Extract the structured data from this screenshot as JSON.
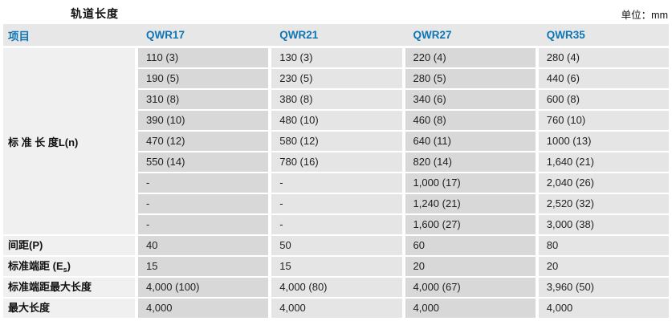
{
  "page": {
    "title": "轨道长度",
    "unit_label": "单位：mm"
  },
  "colors": {
    "accent_blue": "#0f76b4",
    "header_bg": "#e7e7e7",
    "label_bg": "#f0f0f0",
    "cell_dark": "#d8d8d8",
    "cell_light": "#e5e5e5"
  },
  "table": {
    "header": {
      "item": "项目",
      "columns": [
        "QWR17",
        "QWR21",
        "QWR27",
        "QWR35"
      ]
    },
    "standard_length": {
      "label": "标 准 长 度L(n)",
      "rows": [
        [
          "110 (3)",
          "130 (3)",
          "220 (4)",
          "280 (4)"
        ],
        [
          "190 (5)",
          "230 (5)",
          "280 (5)",
          "440 (6)"
        ],
        [
          "310 (8)",
          "380 (8)",
          "340 (6)",
          "600 (8)"
        ],
        [
          "390 (10)",
          "480 (10)",
          "460 (8)",
          "760 (10)"
        ],
        [
          "470 (12)",
          "580 (12)",
          "640 (11)",
          "1000 (13)"
        ],
        [
          "550 (14)",
          "780 (16)",
          "820 (14)",
          "1,640 (21)"
        ],
        [
          "-",
          "-",
          "1,000 (17)",
          "2,040 (26)"
        ],
        [
          "-",
          "-",
          "1,240 (21)",
          "2,520 (32)"
        ],
        [
          "-",
          "-",
          "1,600 (27)",
          "3,000 (38)"
        ]
      ]
    },
    "summary": [
      {
        "label": "间距(P)",
        "values": [
          "40",
          "50",
          "60",
          "80"
        ]
      },
      {
        "label_prefix": "标准端距 (E",
        "label_sub": "s",
        "label_suffix": ")",
        "values": [
          "15",
          "15",
          "20",
          "20"
        ]
      },
      {
        "label": "标准端距最大长度",
        "values": [
          "4,000 (100)",
          "4,000 (80)",
          "4,000 (67)",
          "3,960 (50)"
        ]
      },
      {
        "label": "最大长度",
        "values": [
          "4,000",
          "4,000",
          "4,000",
          "4,000"
        ]
      }
    ]
  }
}
